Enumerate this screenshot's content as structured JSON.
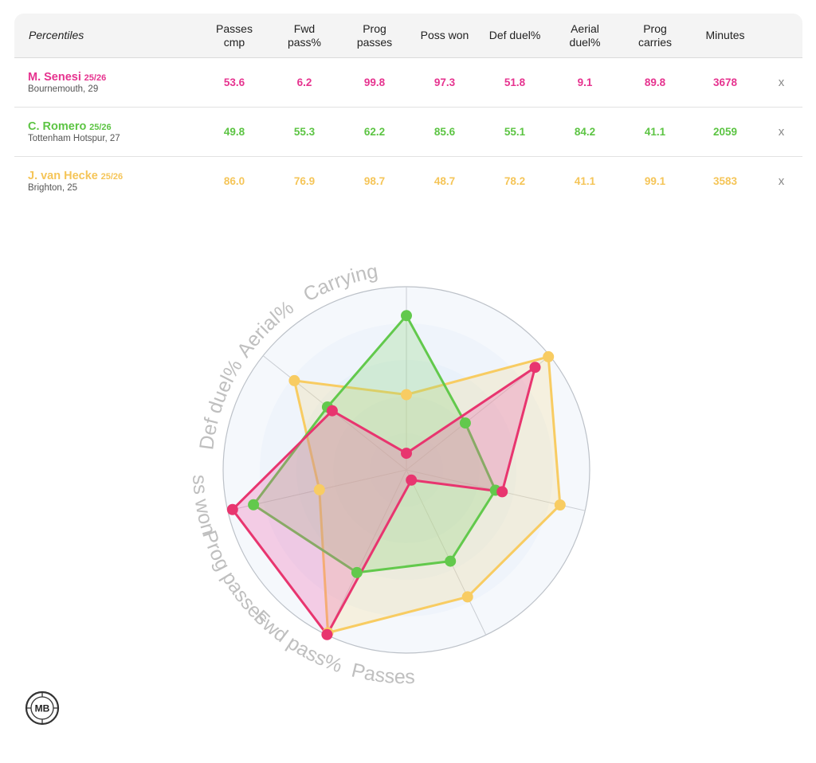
{
  "table": {
    "header_label": "Percentiles",
    "columns": [
      [
        "Passes",
        "cmp"
      ],
      [
        "Fwd",
        "pass%"
      ],
      [
        "Prog",
        "passes"
      ],
      [
        "Poss won"
      ],
      [
        "Def duel%"
      ],
      [
        "Aerial",
        "duel%"
      ],
      [
        "Prog",
        "carries"
      ],
      [
        "Minutes"
      ]
    ],
    "remove_label": "x"
  },
  "players": [
    {
      "name": "M. Senesi",
      "season": "25/26",
      "team": "Bournemouth, 29",
      "color": "#e6338f",
      "stroke": "#e8356f",
      "fill": "#ec5aa8",
      "values": [
        "53.6",
        "6.2",
        "99.8",
        "97.3",
        "51.8",
        "9.1",
        "89.8",
        "3678"
      ]
    },
    {
      "name": "C. Romero",
      "season": "25/26",
      "team": "Tottenham Hotspur, 27",
      "color": "#5cc443",
      "stroke": "#62c94c",
      "fill": "#8fd97a",
      "values": [
        "49.8",
        "55.3",
        "62.2",
        "85.6",
        "55.1",
        "84.2",
        "41.1",
        "2059"
      ]
    },
    {
      "name": "J. van Hecke",
      "season": "25/26",
      "team": "Brighton, 25",
      "color": "#f5c558",
      "stroke": "#f8cc62",
      "fill": "#f6dc93",
      "values": [
        "86.0",
        "76.9",
        "98.7",
        "48.7",
        "78.2",
        "41.1",
        "99.1",
        "3583"
      ]
    }
  ],
  "chart_data": {
    "type": "radar",
    "axes": [
      "Aerial%",
      "Carrying",
      "Passes",
      "Fwd pass%",
      "Prog passes",
      "Poss won",
      "Def duel%"
    ],
    "range": [
      0,
      100
    ],
    "series": [
      {
        "name": "M. Senesi",
        "values": [
          9.1,
          89.8,
          53.6,
          6.2,
          99.8,
          97.3,
          51.8
        ]
      },
      {
        "name": "C. Romero",
        "values": [
          84.2,
          41.1,
          49.8,
          55.3,
          62.2,
          85.6,
          55.1
        ]
      },
      {
        "name": "J. van Hecke",
        "values": [
          41.1,
          99.1,
          86.0,
          76.9,
          98.7,
          48.7,
          78.2
        ]
      }
    ]
  },
  "logo": {
    "text": "MB"
  }
}
